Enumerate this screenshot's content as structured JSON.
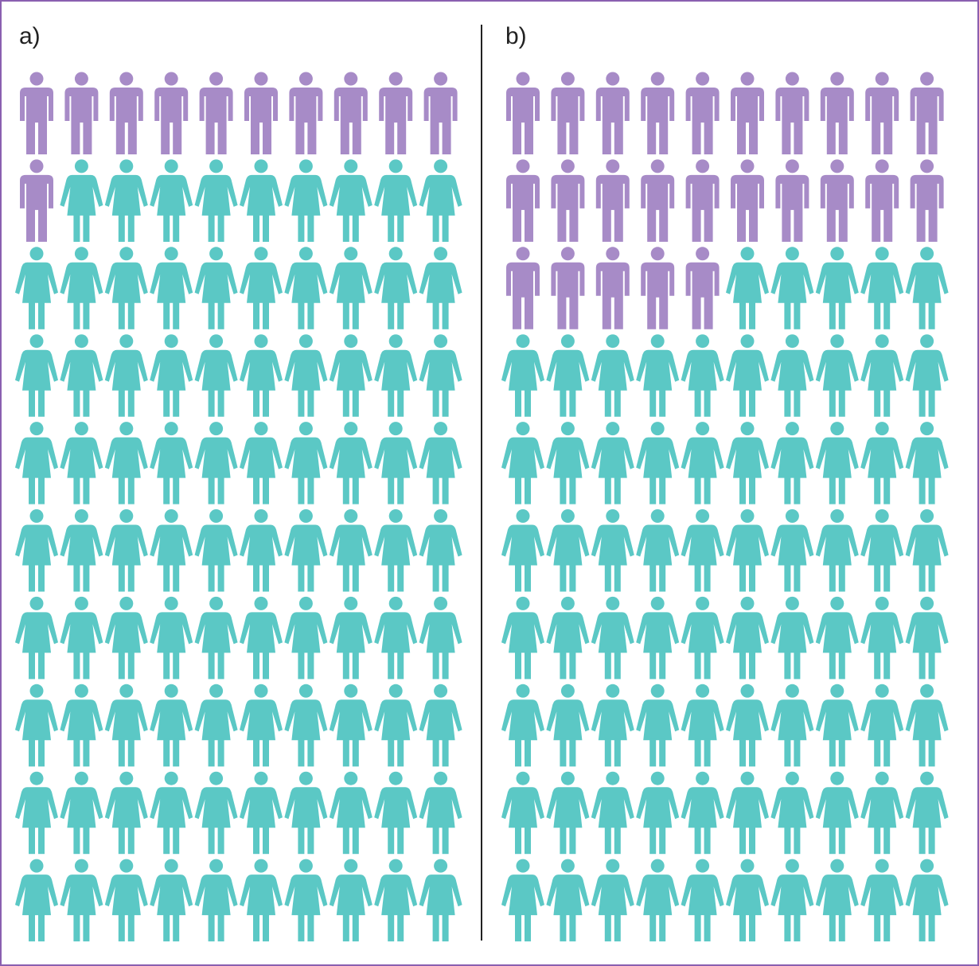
{
  "chart_data": [
    {
      "type": "pictogram",
      "panel_label": "a)",
      "total": 100,
      "series": [
        {
          "icon": "man-icon",
          "color": "#a78bc7",
          "count": 11
        },
        {
          "icon": "woman-icon",
          "color": "#5bc8c5",
          "count": 89
        }
      ],
      "columns": 10,
      "rows": 10
    },
    {
      "type": "pictogram",
      "panel_label": "b)",
      "total": 100,
      "series": [
        {
          "icon": "man-icon",
          "color": "#a78bc7",
          "count": 25
        },
        {
          "icon": "woman-icon",
          "color": "#5bc8c5",
          "count": 75
        }
      ],
      "columns": 10,
      "rows": 10
    }
  ],
  "colors": {
    "frame": "#8a5fb0",
    "divider": "#222222"
  }
}
